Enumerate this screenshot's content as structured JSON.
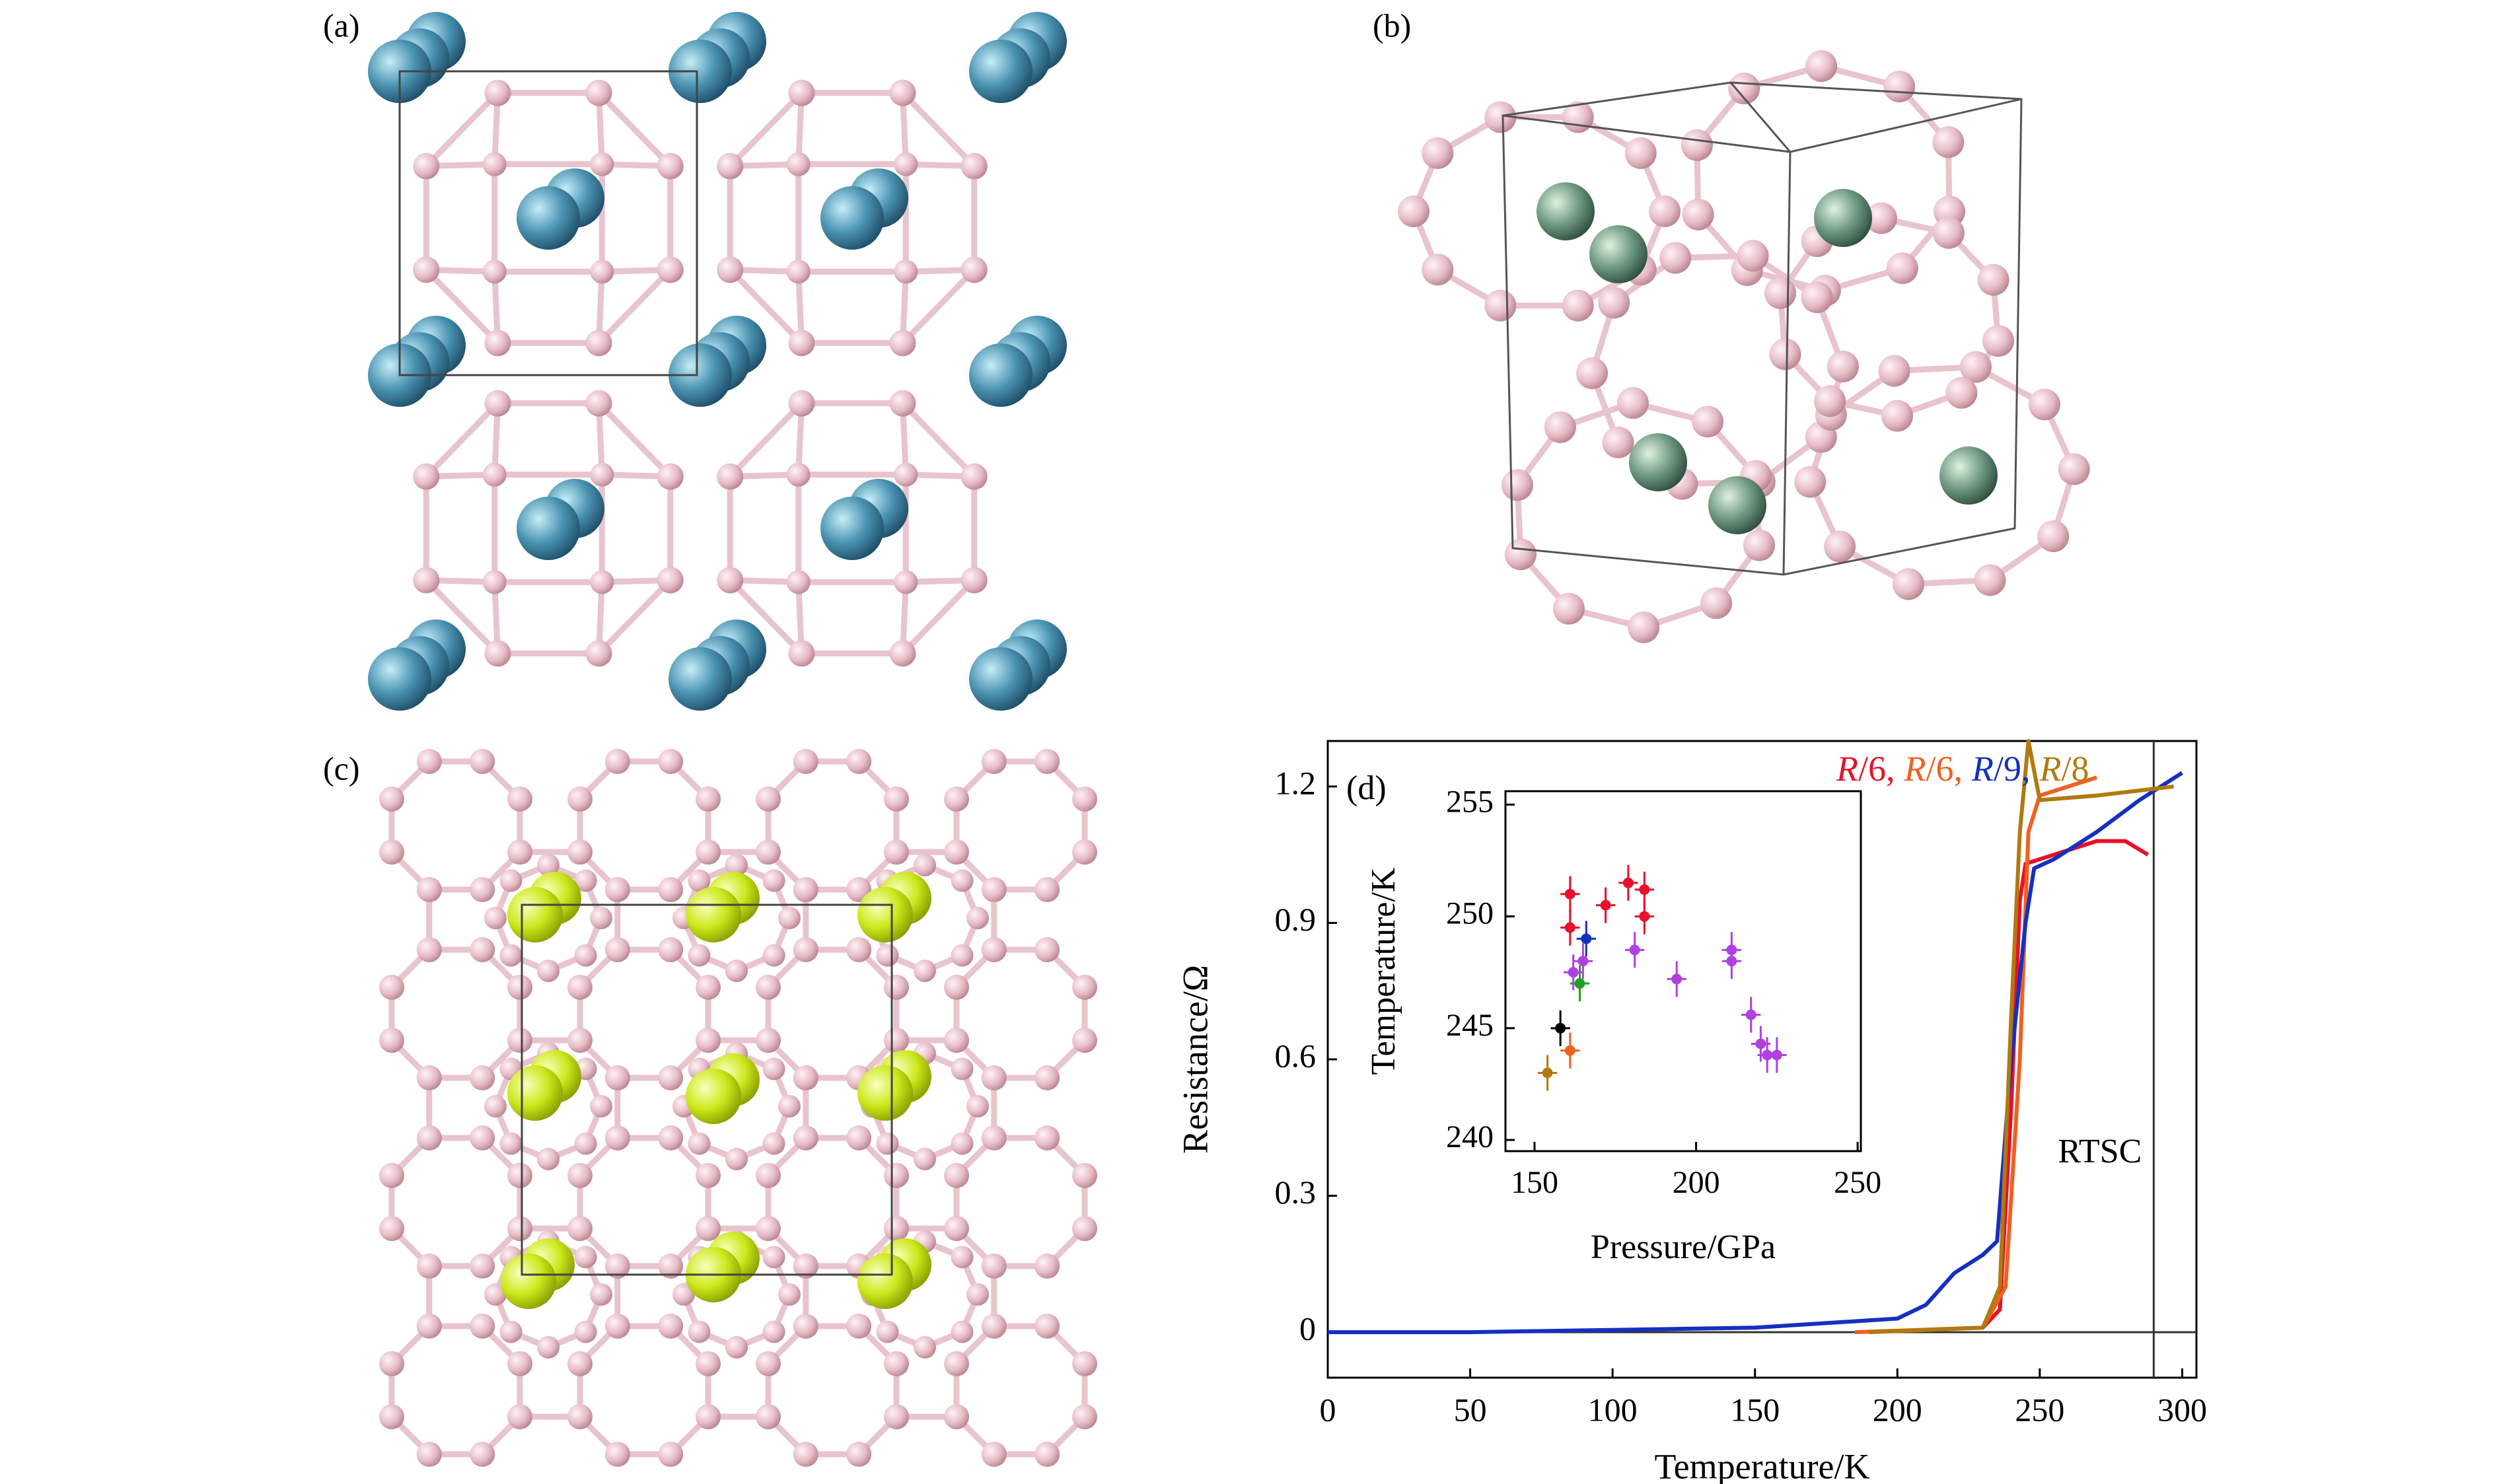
{
  "panel_labels": [
    "(a)",
    "(b)",
    "(c)"
  ],
  "chart_data": {
    "type": "line",
    "label": "(d)",
    "xlabel": "Temperature/K",
    "ylabel": "Resistance/Ω",
    "xlim": [
      0,
      305
    ],
    "ylim": [
      -0.1,
      1.3
    ],
    "xticks": [
      0,
      50,
      100,
      150,
      200,
      250,
      300
    ],
    "yticks": [
      0,
      0.3,
      0.6,
      0.9,
      1.2
    ],
    "annotation": "RTSC",
    "reference_x": 290,
    "series": [
      {
        "name": "R/6,",
        "color": "#e8102a",
        "x": [
          230,
          236,
          240,
          243,
          245,
          250,
          260,
          270,
          280,
          288
        ],
        "values": [
          0.01,
          0.05,
          0.5,
          0.95,
          1.03,
          1.04,
          1.06,
          1.08,
          1.08,
          1.05
        ]
      },
      {
        "name": "R/6,",
        "color": "#f06020",
        "x": [
          185,
          230,
          238,
          243,
          246,
          250,
          260,
          270
        ],
        "values": [
          0,
          0.01,
          0.1,
          0.6,
          1.1,
          1.18,
          1.2,
          1.22
        ]
      },
      {
        "name": "R/9,",
        "color": "#1530c0",
        "x": [
          0,
          50,
          100,
          150,
          200,
          210,
          220,
          230,
          235,
          240,
          245,
          248,
          255,
          270,
          285,
          300
        ],
        "values": [
          0,
          0,
          0.005,
          0.01,
          0.03,
          0.06,
          0.13,
          0.17,
          0.2,
          0.6,
          0.9,
          1.02,
          1.04,
          1.1,
          1.17,
          1.23
        ]
      },
      {
        "name": "R/8",
        "color": "#b07a10",
        "x": [
          190,
          230,
          236,
          240,
          243,
          246,
          250,
          270,
          297
        ],
        "values": [
          0,
          0.01,
          0.1,
          0.7,
          1.1,
          1.3,
          1.17,
          1.18,
          1.2
        ]
      }
    ],
    "inset": {
      "type": "scatter",
      "xlabel": "Pressure/GPa",
      "ylabel": "Temperature/K",
      "xlim": [
        141,
        251
      ],
      "ylim": [
        239.5,
        255.6
      ],
      "xticks": [
        150,
        200,
        250
      ],
      "yticks": [
        240,
        245,
        250,
        255
      ],
      "series": [
        {
          "color": "#e8102a",
          "x": [
            161,
            161,
            172,
            179,
            184,
            184
          ],
          "values": [
            251,
            249.5,
            250.5,
            251.5,
            251.2,
            250
          ],
          "xerr": 3,
          "yerr": 0.8
        },
        {
          "color": "#f06020",
          "x": [
            161
          ],
          "values": [
            244
          ],
          "xerr": 3,
          "yerr": 0.8
        },
        {
          "color": "#b07a10",
          "x": [
            154
          ],
          "values": [
            243
          ],
          "xerr": 3,
          "yerr": 0.8
        },
        {
          "color": "#000000",
          "x": [
            158
          ],
          "values": [
            245
          ],
          "xerr": 3,
          "yerr": 0.8
        },
        {
          "color": "#1530c0",
          "x": [
            166
          ],
          "values": [
            249
          ],
          "xerr": 3,
          "yerr": 0.8
        },
        {
          "color": "#20a020",
          "x": [
            164
          ],
          "values": [
            247
          ],
          "xerr": 3,
          "yerr": 0.8
        },
        {
          "color": "#b040e0",
          "x": [
            162,
            165,
            181,
            194,
            211,
            211,
            217,
            220,
            222,
            225
          ],
          "values": [
            247.5,
            248,
            248.5,
            247.2,
            248.5,
            248,
            245.6,
            244.3,
            243.8,
            243.8
          ],
          "xerr": 3,
          "yerr": 0.8
        }
      ]
    }
  }
}
